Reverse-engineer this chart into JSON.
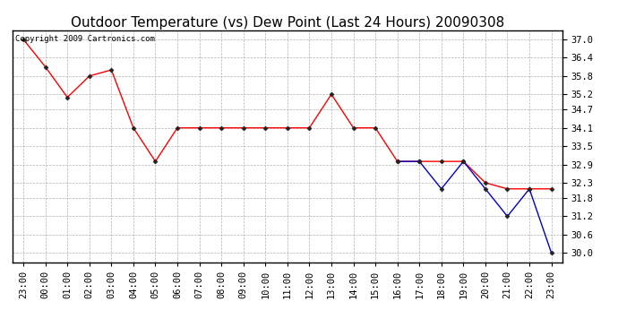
{
  "title": "Outdoor Temperature (vs) Dew Point (Last 24 Hours) 20090308",
  "copyright_text": "Copyright 2009 Cartronics.com",
  "x_labels": [
    "23:00",
    "00:00",
    "01:00",
    "02:00",
    "03:00",
    "04:00",
    "05:00",
    "06:00",
    "07:00",
    "08:00",
    "09:00",
    "10:00",
    "11:00",
    "12:00",
    "13:00",
    "14:00",
    "15:00",
    "16:00",
    "17:00",
    "18:00",
    "19:00",
    "20:00",
    "21:00",
    "22:00",
    "23:00"
  ],
  "temp_x": [
    0,
    1,
    2,
    3,
    4,
    5,
    6,
    7,
    8,
    9,
    10,
    11,
    12,
    13,
    14,
    15,
    16,
    17,
    18,
    19,
    20,
    21,
    22,
    23,
    24
  ],
  "temp_y": [
    37.0,
    36.1,
    35.1,
    35.8,
    36.0,
    34.1,
    33.0,
    34.1,
    34.1,
    34.1,
    34.1,
    34.1,
    34.1,
    34.1,
    35.2,
    34.1,
    34.1,
    33.0,
    33.0,
    33.0,
    33.0,
    32.3,
    32.1,
    32.1,
    32.1
  ],
  "dew_x": [
    17,
    18,
    19,
    20,
    21,
    22,
    23,
    24
  ],
  "dew_y": [
    33.0,
    33.0,
    32.1,
    33.0,
    32.1,
    31.2,
    32.1,
    30.0
  ],
  "temp_color": "#ff0000",
  "dew_color": "#0000cc",
  "ylim_min": 29.7,
  "ylim_max": 37.3,
  "yticks": [
    30.0,
    30.6,
    31.2,
    31.8,
    32.3,
    32.9,
    33.5,
    34.1,
    34.7,
    35.2,
    35.8,
    36.4,
    37.0
  ],
  "background_color": "#ffffff",
  "grid_color": "#aaaaaa",
  "title_fontsize": 11,
  "tick_fontsize": 7.5,
  "copyright_fontsize": 6.5
}
